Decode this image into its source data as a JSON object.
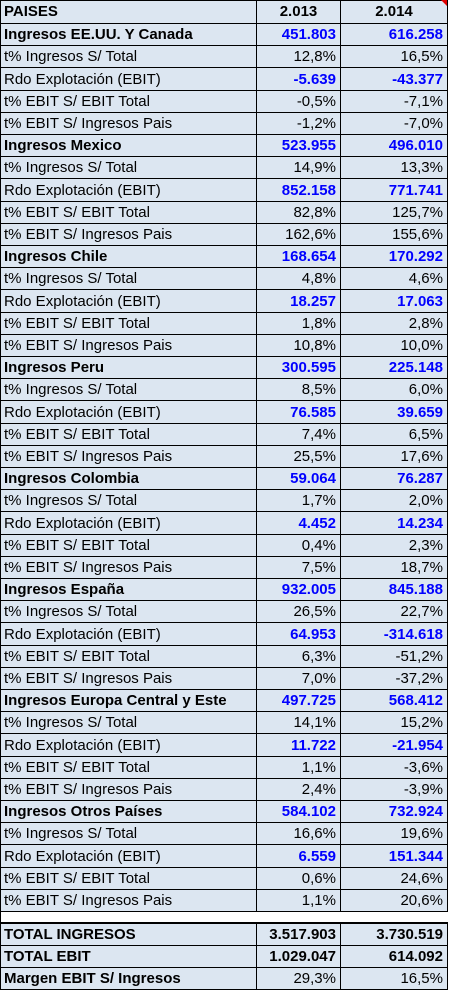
{
  "table": {
    "header": [
      "PAISES",
      "2.013",
      "2.014"
    ],
    "groups": [
      [
        [
          "Ingresos EE.UU. Y Canada",
          "451.803",
          "616.258"
        ],
        [
          "t% Ingresos S/ Total",
          "12,8%",
          "16,5%"
        ],
        [
          "Rdo Explotación (EBIT)",
          "-5.639",
          "-43.377"
        ],
        [
          "t% EBIT S/ EBIT Total",
          "-0,5%",
          "-7,1%"
        ],
        [
          "t% EBIT S/ Ingresos Pais",
          "-1,2%",
          "-7,0%"
        ]
      ],
      [
        [
          "Ingresos Mexico",
          "523.955",
          "496.010"
        ],
        [
          "t% Ingresos S/ Total",
          "14,9%",
          "13,3%"
        ],
        [
          "Rdo Explotación (EBIT)",
          "852.158",
          "771.741"
        ],
        [
          "t% EBIT S/ EBIT Total",
          "82,8%",
          "125,7%"
        ],
        [
          "t% EBIT S/ Ingresos Pais",
          "162,6%",
          "155,6%"
        ]
      ],
      [
        [
          "Ingresos Chile",
          "168.654",
          "170.292"
        ],
        [
          "t% Ingresos S/ Total",
          "4,8%",
          "4,6%"
        ],
        [
          "Rdo Explotación (EBIT)",
          "18.257",
          "17.063"
        ],
        [
          "t% EBIT S/ EBIT Total",
          "1,8%",
          "2,8%"
        ],
        [
          "t% EBIT S/ Ingresos Pais",
          "10,8%",
          "10,0%"
        ]
      ],
      [
        [
          "Ingresos Peru",
          "300.595",
          "225.148"
        ],
        [
          "t% Ingresos S/ Total",
          "8,5%",
          "6,0%"
        ],
        [
          "Rdo Explotación (EBIT)",
          "76.585",
          "39.659"
        ],
        [
          "t% EBIT S/ EBIT Total",
          "7,4%",
          "6,5%"
        ],
        [
          "t% EBIT S/ Ingresos Pais",
          "25,5%",
          "17,6%"
        ]
      ],
      [
        [
          "Ingresos Colombia",
          "59.064",
          "76.287"
        ],
        [
          "t% Ingresos S/ Total",
          "1,7%",
          "2,0%"
        ],
        [
          "Rdo Explotación (EBIT)",
          "4.452",
          "14.234"
        ],
        [
          "t% EBIT S/ EBIT Total",
          "0,4%",
          "2,3%"
        ],
        [
          "t% EBIT S/ Ingresos Pais",
          "7,5%",
          "18,7%"
        ]
      ],
      [
        [
          "Ingresos España",
          "932.005",
          "845.188"
        ],
        [
          "t% Ingresos S/ Total",
          "26,5%",
          "22,7%"
        ],
        [
          "Rdo Explotación (EBIT)",
          "64.953",
          "-314.618"
        ],
        [
          "t% EBIT S/ EBIT Total",
          "6,3%",
          "-51,2%"
        ],
        [
          "t% EBIT S/ Ingresos Pais",
          "7,0%",
          "-37,2%"
        ]
      ],
      [
        [
          "Ingresos Europa Central y Este",
          "497.725",
          "568.412"
        ],
        [
          "t% Ingresos S/ Total",
          "14,1%",
          "15,2%"
        ],
        [
          "Rdo Explotación (EBIT)",
          "11.722",
          "-21.954"
        ],
        [
          "t% EBIT S/ EBIT Total",
          "1,1%",
          "-3,6%"
        ],
        [
          "t% EBIT S/ Ingresos Pais",
          "2,4%",
          "-3,9%"
        ]
      ],
      [
        [
          "Ingresos Otros Países",
          "584.102",
          "732.924"
        ],
        [
          "t% Ingresos S/ Total",
          "16,6%",
          "19,6%"
        ],
        [
          "Rdo Explotación (EBIT)",
          "6.559",
          "151.344"
        ],
        [
          "t% EBIT S/ EBIT Total",
          "0,6%",
          "24,6%"
        ],
        [
          "t% EBIT S/ Ingresos Pais",
          "1,1%",
          "20,6%"
        ]
      ]
    ],
    "totals": [
      [
        "TOTAL INGRESOS",
        "3.517.903",
        "3.730.519"
      ],
      [
        "TOTAL EBIT",
        "1.029.047",
        "614.092"
      ],
      [
        "Margen EBIT S/ Ingresos",
        "29,3%",
        "16,5%"
      ]
    ]
  }
}
